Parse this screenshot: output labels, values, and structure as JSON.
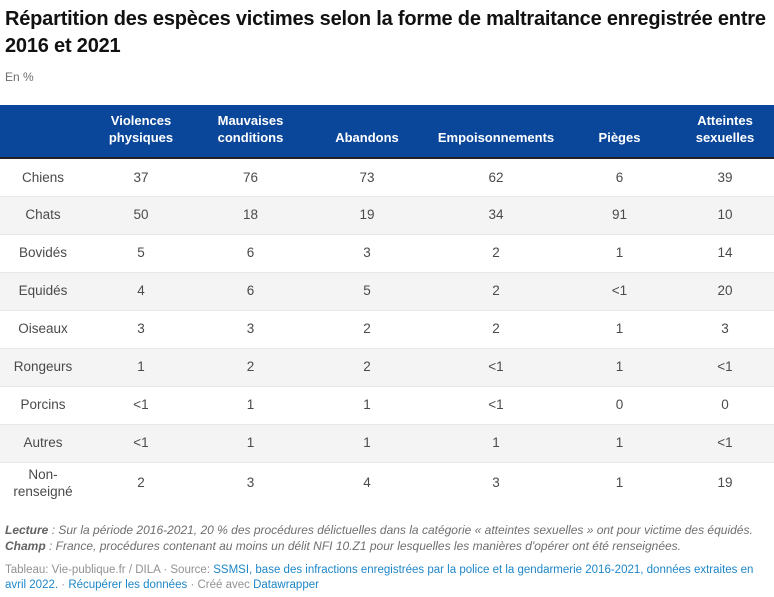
{
  "chart_data": {
    "type": "table",
    "title": "Répartition des espèces victimes selon la forme de maltraitance enregistrée entre 2016 et 2021",
    "subtitle": "En %",
    "columns": [
      "Violences physiques",
      "Mauvaises conditions",
      "Abandons",
      "Empoisonnements",
      "Pièges",
      "Atteintes sexuelles"
    ],
    "rows": [
      {
        "label": "Chiens",
        "values": [
          "37",
          "76",
          "73",
          "62",
          "6",
          "39"
        ]
      },
      {
        "label": "Chats",
        "values": [
          "50",
          "18",
          "19",
          "34",
          "91",
          "10"
        ]
      },
      {
        "label": "Bovidés",
        "values": [
          "5",
          "6",
          "3",
          "2",
          "1",
          "14"
        ]
      },
      {
        "label": "Equidés",
        "values": [
          "4",
          "6",
          "5",
          "2",
          "<1",
          "20"
        ]
      },
      {
        "label": "Oiseaux",
        "values": [
          "3",
          "3",
          "2",
          "2",
          "1",
          "3"
        ]
      },
      {
        "label": "Rongeurs",
        "values": [
          "1",
          "2",
          "2",
          "<1",
          "1",
          "<1"
        ]
      },
      {
        "label": "Porcins",
        "values": [
          "<1",
          "1",
          "1",
          "<1",
          "0",
          "0"
        ]
      },
      {
        "label": "Autres",
        "values": [
          "<1",
          "1",
          "1",
          "1",
          "1",
          "<1"
        ]
      },
      {
        "label": "Non-renseigné",
        "values": [
          "2",
          "3",
          "4",
          "3",
          "1",
          "19"
        ]
      }
    ],
    "layout": {
      "striped_rows": true,
      "header_background": "#0a479b",
      "value_alignment": "center"
    }
  },
  "notes": {
    "lecture_label": "Lecture",
    "lecture_text": ": Sur la période 2016-2021, 20 % des procédures délictuelles dans la catégorie « atteintes sexuelles » ont pour victime des équidés.",
    "champ_label": "Champ",
    "champ_text": ": France, procédures contenant au moins un délit NFI 10.Z1 pour lesquelles les manières d'opérer ont été renseignées."
  },
  "footer": {
    "attribution": "Tableau: Vie-publique.fr / DILA",
    "separator": "·",
    "source_prefix": "Source:",
    "source_link": "SSMSI, base des infractions enregistrées par la police et la gendarmerie 2016-2021, données extraites en avril 2022.",
    "download_link": "Récupérer les données",
    "created_with": "Créé avec",
    "datawrapper_link": "Datawrapper"
  },
  "colors": {
    "header_background": "#0a479b",
    "header_text": "#ffffff",
    "link": "#1d86c8",
    "row_stripe": "#f4f4f4",
    "header_bottom_border": "#222222",
    "cell_text": "#4a4a4a"
  }
}
